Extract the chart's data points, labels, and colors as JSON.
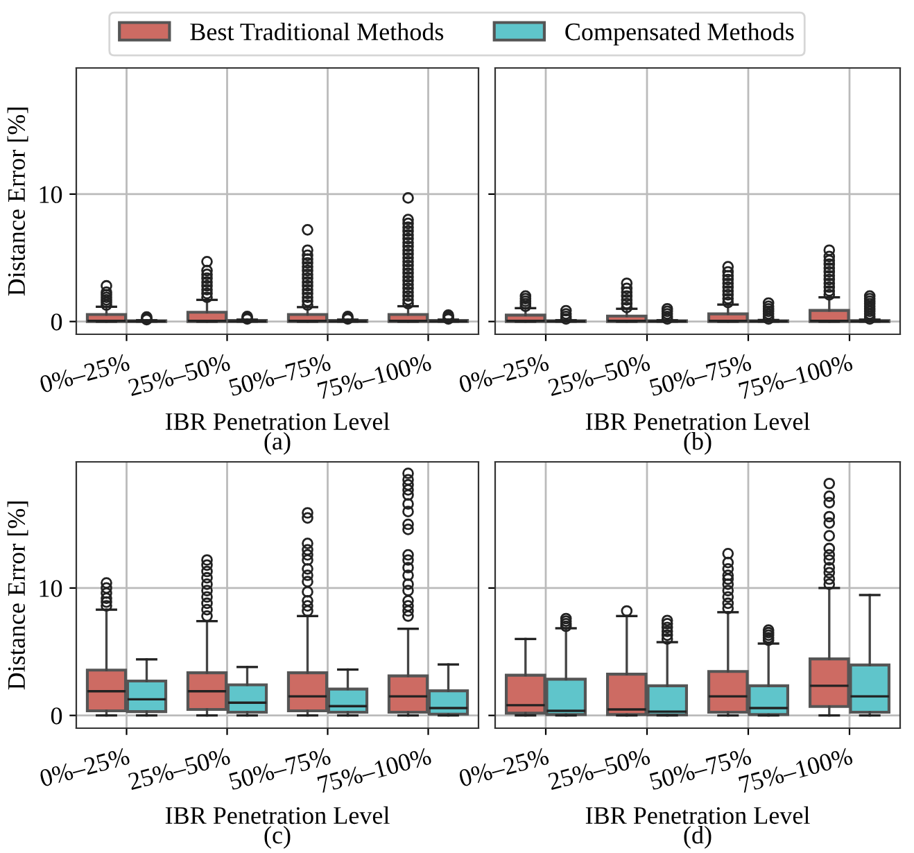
{
  "chart_data": [
    {
      "type": "box",
      "xlabel": "IBR Penetration Level",
      "ylabel": "Distance Error [%]",
      "title": "(a)",
      "categories": [
        "0%–25%",
        "25%–50%",
        "50%–75%",
        "75%–100%"
      ],
      "ylim": [
        -1,
        19.9
      ],
      "yticks": [
        0,
        10
      ],
      "grid": true,
      "legend": "top",
      "series": [
        {
          "name": "Best Traditional Methods",
          "color": "#cd6b63",
          "boxes": [
            {
              "low": 0,
              "q1": 0,
              "median": 0.05,
              "q3": 0.55,
              "high": 1.16,
              "outliers": [
                1.3,
                1.5,
                1.7,
                1.9,
                2.1,
                2.3,
                2.8
              ]
            },
            {
              "low": 0,
              "q1": 0,
              "median": 0.05,
              "q3": 0.73,
              "high": 1.7,
              "outliers": [
                1.9,
                2.2,
                2.5,
                2.8,
                3.1,
                3.4,
                3.7,
                4.0,
                4.7
              ]
            },
            {
              "low": 0,
              "q1": 0,
              "median": 0.05,
              "q3": 0.55,
              "high": 1.13,
              "outliers": [
                1.3,
                1.6,
                1.9,
                2.2,
                2.5,
                2.8,
                3.1,
                3.4,
                3.7,
                4.0,
                4.3,
                4.6,
                4.9,
                5.2,
                5.6,
                7.2
              ]
            },
            {
              "low": 0,
              "q1": 0,
              "median": 0.05,
              "q3": 0.55,
              "high": 1.2,
              "outliers": [
                1.4,
                1.7,
                2.0,
                2.3,
                2.6,
                2.9,
                3.2,
                3.5,
                3.8,
                4.1,
                4.4,
                4.7,
                5.0,
                5.3,
                5.6,
                5.9,
                6.2,
                6.5,
                6.8,
                7.1,
                7.4,
                7.7,
                8.0,
                9.7
              ]
            }
          ]
        },
        {
          "name": "Compensated Methods",
          "color": "#5fc5cb",
          "boxes": [
            {
              "low": 0,
              "q1": 0,
              "median": 0.02,
              "q3": 0.05,
              "high": 0.1,
              "outliers": [
                0.15,
                0.25,
                0.35
              ]
            },
            {
              "low": 0,
              "q1": 0,
              "median": 0.02,
              "q3": 0.08,
              "high": 0.15,
              "outliers": [
                0.2,
                0.3,
                0.4
              ]
            },
            {
              "low": 0,
              "q1": 0,
              "median": 0.02,
              "q3": 0.08,
              "high": 0.15,
              "outliers": [
                0.2,
                0.3,
                0.4
              ]
            },
            {
              "low": 0,
              "q1": 0,
              "median": 0.02,
              "q3": 0.08,
              "high": 0.15,
              "outliers": [
                0.2,
                0.3,
                0.4,
                0.5
              ]
            }
          ]
        }
      ]
    },
    {
      "type": "box",
      "xlabel": "IBR Penetration Level",
      "title": "(b)",
      "categories": [
        "0%–25%",
        "25%–50%",
        "50%–75%",
        "75%–100%"
      ],
      "ylim": [
        -1,
        19.9
      ],
      "yticks": [
        0,
        10
      ],
      "grid": true,
      "tick_labels": "x",
      "series": [
        {
          "color": "#cd6b63",
          "boxes": [
            {
              "low": 0,
              "q1": 0,
              "median": 0.05,
              "q3": 0.5,
              "high": 1.05,
              "outliers": [
                1.2,
                1.4,
                1.6,
                1.8,
                2.0
              ]
            },
            {
              "low": 0,
              "q1": 0,
              "median": 0.05,
              "q3": 0.43,
              "high": 1.0,
              "outliers": [
                1.1,
                1.4,
                1.7,
                2.0,
                2.3,
                2.6,
                3.0
              ]
            },
            {
              "low": 0,
              "q1": 0,
              "median": 0.05,
              "q3": 0.6,
              "high": 1.33,
              "outliers": [
                1.5,
                1.8,
                2.1,
                2.4,
                2.7,
                3.0,
                3.3,
                3.6,
                3.9,
                4.3
              ]
            },
            {
              "low": 0,
              "q1": 0,
              "median": 0.05,
              "q3": 0.87,
              "high": 1.9,
              "outliers": [
                2.1,
                2.4,
                2.7,
                3.0,
                3.3,
                3.6,
                3.9,
                4.2,
                4.5,
                4.8,
                5.1,
                5.6
              ]
            }
          ]
        },
        {
          "color": "#5fc5cb",
          "boxes": [
            {
              "low": 0,
              "q1": 0,
              "median": 0.02,
              "q3": 0.05,
              "high": 0.1,
              "outliers": [
                0.2,
                0.4,
                0.6,
                0.85
              ]
            },
            {
              "low": 0,
              "q1": 0,
              "median": 0.02,
              "q3": 0.05,
              "high": 0.1,
              "outliers": [
                0.2,
                0.4,
                0.6,
                0.8,
                1.0
              ]
            },
            {
              "low": 0,
              "q1": 0,
              "median": 0.02,
              "q3": 0.06,
              "high": 0.12,
              "outliers": [
                0.2,
                0.4,
                0.6,
                0.8,
                1.0,
                1.2,
                1.45
              ]
            },
            {
              "low": 0,
              "q1": 0,
              "median": 0.02,
              "q3": 0.07,
              "high": 0.15,
              "outliers": [
                0.2,
                0.4,
                0.6,
                0.8,
                1.0,
                1.2,
                1.4,
                1.6,
                1.8,
                2.0
              ]
            }
          ]
        }
      ]
    },
    {
      "type": "box",
      "xlabel": "IBR Penetration Level",
      "ylabel": "Distance Error [%]",
      "title": "(c)",
      "categories": [
        "0%–25%",
        "25%–50%",
        "50%–75%",
        "75%–100%"
      ],
      "ylim": [
        -1,
        19.9
      ],
      "yticks": [
        0,
        10
      ],
      "grid": true,
      "series": [
        {
          "color": "#cd6b63",
          "boxes": [
            {
              "low": 0,
              "q1": 0.36,
              "median": 1.9,
              "q3": 3.56,
              "high": 8.3,
              "outliers": [
                8.6,
                8.9,
                9.2,
                9.6,
                10.0,
                10.4
              ]
            },
            {
              "low": 0,
              "q1": 0.47,
              "median": 1.9,
              "q3": 3.35,
              "high": 7.4,
              "outliers": [
                7.8,
                8.3,
                8.8,
                9.3,
                9.8,
                10.3,
                10.8,
                11.3,
                11.8,
                12.2
              ]
            },
            {
              "low": 0,
              "q1": 0.36,
              "median": 1.5,
              "q3": 3.35,
              "high": 7.8,
              "outliers": [
                8.2,
                8.6,
                9.0,
                9.7,
                10.5,
                11.0,
                11.5,
                12.2,
                12.6,
                13.0,
                13.5,
                15.5,
                15.9
              ]
            },
            {
              "low": 0,
              "q1": 0.25,
              "median": 1.5,
              "q3": 3.1,
              "high": 6.8,
              "outliers": [
                7.8,
                8.2,
                8.6,
                9.0,
                9.8,
                10.3,
                11.0,
                11.6,
                12.2,
                12.6,
                14.6,
                15.0,
                16.0,
                16.6,
                17.3,
                17.7,
                18.1,
                18.5,
                19.0
              ]
            }
          ]
        },
        {
          "color": "#5fc5cb",
          "boxes": [
            {
              "low": 0,
              "q1": 0.3,
              "median": 1.27,
              "q3": 2.7,
              "high": 4.4
            },
            {
              "low": 0,
              "q1": 0.25,
              "median": 1.0,
              "q3": 2.4,
              "high": 3.8
            },
            {
              "low": 0,
              "q1": 0.25,
              "median": 0.73,
              "q3": 2.07,
              "high": 3.6
            },
            {
              "low": 0,
              "q1": 0.1,
              "median": 0.58,
              "q3": 1.93,
              "high": 4.0
            }
          ]
        }
      ]
    },
    {
      "type": "box",
      "xlabel": "IBR Penetration Level",
      "title": "(d)",
      "categories": [
        "0%–25%",
        "25%–50%",
        "50%–75%",
        "75%–100%"
      ],
      "ylim": [
        -1,
        19.9
      ],
      "yticks": [
        0,
        10
      ],
      "grid": true,
      "tick_labels": "x",
      "series": [
        {
          "color": "#cd6b63",
          "boxes": [
            {
              "low": 0,
              "q1": 0.18,
              "median": 0.8,
              "q3": 3.16,
              "high": 6.0
            },
            {
              "low": 0,
              "q1": 0.07,
              "median": 0.47,
              "q3": 3.24,
              "high": 7.8,
              "outliers": [
                8.2
              ]
            },
            {
              "low": 0,
              "q1": 0.25,
              "median": 1.5,
              "q3": 3.45,
              "high": 8.1,
              "outliers": [
                8.4,
                8.8,
                9.3,
                9.8,
                10.3,
                10.7,
                11.0,
                11.5,
                12.0,
                12.7
              ]
            },
            {
              "low": 0,
              "q1": 0.7,
              "median": 2.33,
              "q3": 4.44,
              "high": 10.0,
              "outliers": [
                10.3,
                10.7,
                11.2,
                11.6,
                12.2,
                12.6,
                13.1,
                14.1,
                15.1,
                15.6,
                16.7,
                17.2,
                18.2
              ]
            }
          ]
        },
        {
          "color": "#5fc5cb",
          "boxes": [
            {
              "low": 0,
              "q1": 0.07,
              "median": 0.36,
              "q3": 2.84,
              "high": 6.84,
              "outliers": [
                7.0,
                7.2,
                7.4,
                7.6
              ]
            },
            {
              "low": 0,
              "q1": 0.04,
              "median": 0.3,
              "q3": 2.33,
              "high": 5.75,
              "outliers": [
                6.0,
                6.3,
                6.6,
                6.9,
                7.2,
                7.45
              ]
            },
            {
              "low": 0,
              "q1": 0.07,
              "median": 0.58,
              "q3": 2.33,
              "high": 5.64,
              "outliers": [
                5.9,
                6.1,
                6.3,
                6.5,
                6.7
              ]
            },
            {
              "low": 0,
              "q1": 0.25,
              "median": 1.5,
              "q3": 3.96,
              "high": 9.45
            }
          ]
        }
      ]
    }
  ]
}
